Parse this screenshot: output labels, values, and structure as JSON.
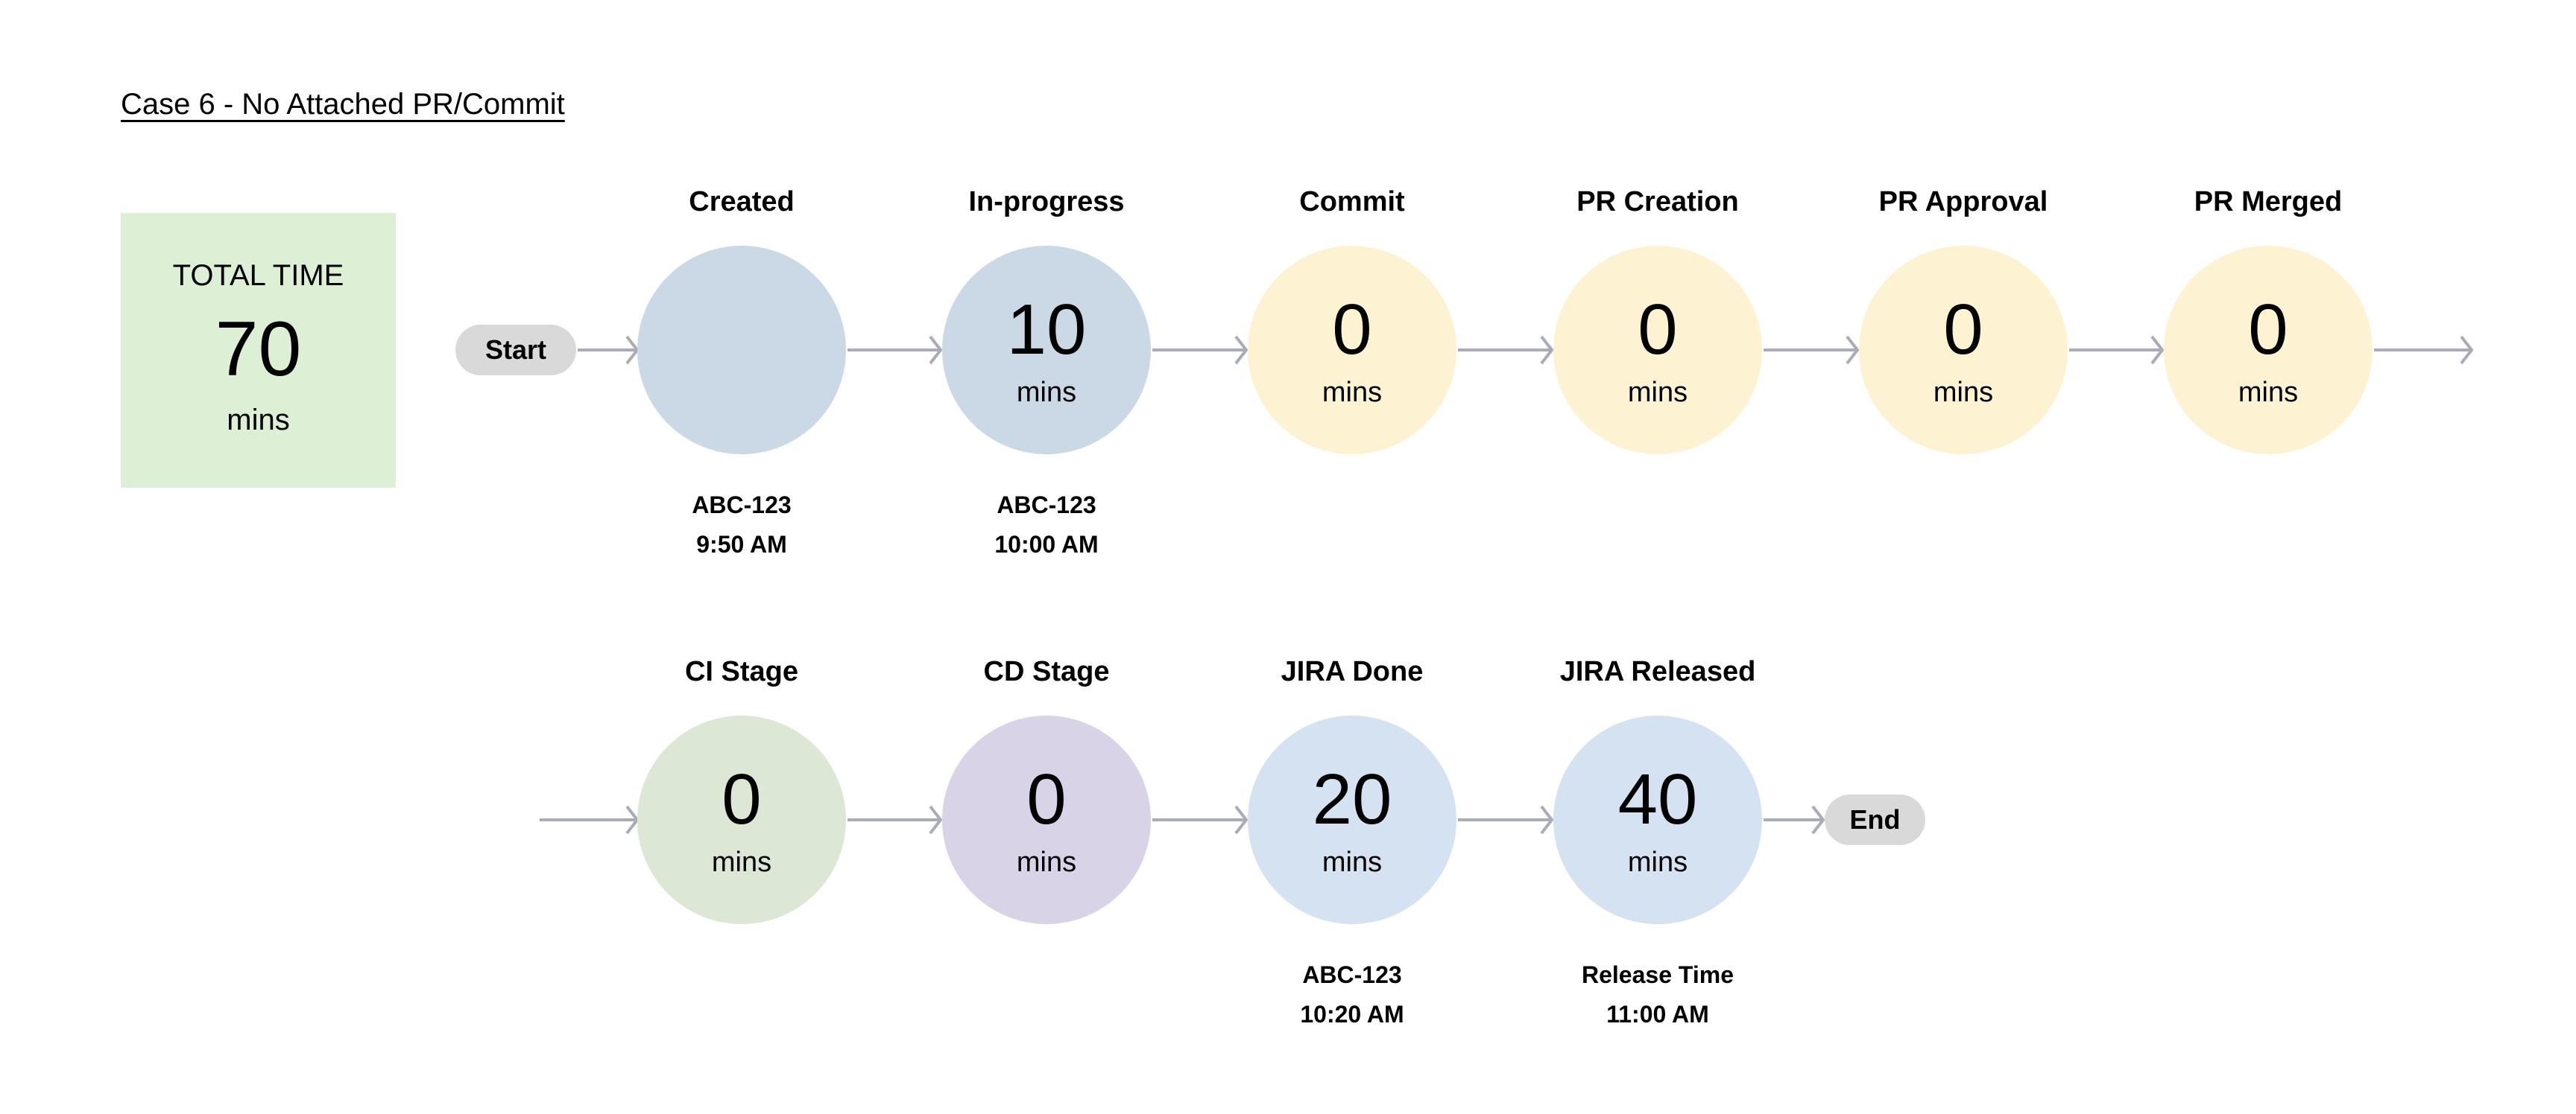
{
  "title": "Case 6 - No Attached PR/Commit",
  "total": {
    "label": "TOTAL TIME",
    "value": "70",
    "unit": "mins",
    "color": "#ddf0d5"
  },
  "start_label": "Start",
  "end_label": "End",
  "arrow_color": "#a9abb8",
  "rows": [
    [
      {
        "label": "Created",
        "value": "",
        "unit": "",
        "color": "#cbd9e6",
        "sub1": "ABC-123",
        "sub2": "9:50 AM"
      },
      {
        "label": "In-progress",
        "value": "10",
        "unit": "mins",
        "color": "#cbd9e6",
        "sub1": "ABC-123",
        "sub2": "10:00 AM"
      },
      {
        "label": "Commit",
        "value": "0",
        "unit": "mins",
        "color": "#fdf3d2"
      },
      {
        "label": "PR Creation",
        "value": "0",
        "unit": "mins",
        "color": "#fdf3d2"
      },
      {
        "label": "PR Approval",
        "value": "0",
        "unit": "mins",
        "color": "#fdf3d2"
      },
      {
        "label": "PR Merged",
        "value": "0",
        "unit": "mins",
        "color": "#fdf3d2"
      }
    ],
    [
      {
        "label": "CI Stage",
        "value": "0",
        "unit": "mins",
        "color": "#dce8d5"
      },
      {
        "label": "CD Stage",
        "value": "0",
        "unit": "mins",
        "color": "#d8d3e7"
      },
      {
        "label": "JIRA Done",
        "value": "20",
        "unit": "mins",
        "color": "#d4e2f2",
        "sub1": "ABC-123",
        "sub2": "10:20 AM"
      },
      {
        "label": "JIRA Released",
        "value": "40",
        "unit": "mins",
        "color": "#d4e2f2",
        "sub1": "Release Time",
        "sub2": "11:00 AM"
      }
    ]
  ]
}
